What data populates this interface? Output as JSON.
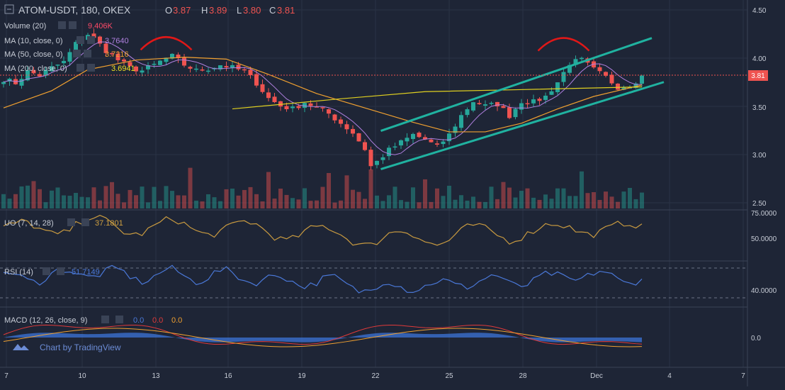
{
  "header": {
    "symbol": "ATOM-USDT, 180, OKEX",
    "ohlc": [
      {
        "k": "O",
        "v": "3.87"
      },
      {
        "k": "H",
        "v": "3.89"
      },
      {
        "k": "L",
        "v": "3.80"
      },
      {
        "k": "C",
        "v": "3.81"
      }
    ]
  },
  "overlays": [
    {
      "label": "Volume (20)",
      "value": "9.406K",
      "color": "#ff4a68"
    },
    {
      "label": "MA (10, close, 0)",
      "value": "3.7640",
      "color": "#b080e0"
    },
    {
      "label": "MA (50, close, 0)",
      "value": "3.7216",
      "color": "#f0a030"
    },
    {
      "label": "MA (200, close, 0)",
      "value": "3.6941",
      "color": "#f0e020"
    }
  ],
  "price_axis": [
    "4.50",
    "4.00",
    "3.50",
    "3.00",
    "2.50"
  ],
  "last_price": "3.81",
  "uo": {
    "label": "UO (7, 14, 28)",
    "value": "37.1801",
    "color": "#d0a040",
    "axis": [
      "75.0000",
      "50.0000"
    ]
  },
  "rsi": {
    "label": "RSI (14)",
    "value": "51.7149",
    "color": "#4a78d8",
    "axis": [
      "40.0000"
    ]
  },
  "macd": {
    "label": "MACD (12, 26, close, 9)",
    "values": [
      {
        "v": "0.0",
        "color": "#4a78d8"
      },
      {
        "v": "0.0",
        "color": "#e03a3a"
      },
      {
        "v": "0.0",
        "color": "#f0a030"
      }
    ],
    "axis": [
      "0.0"
    ]
  },
  "x_axis": [
    "7",
    "10",
    "13",
    "16",
    "19",
    "22",
    "25",
    "28",
    "Dec",
    "4",
    "7"
  ],
  "branding": "Chart by TradingView",
  "colors": {
    "up": "#26a69a",
    "down": "#ef5350",
    "channel": "#20b2a0",
    "arc": "#e01818",
    "background": "#1e2536"
  },
  "chart_data": {
    "type": "candlestick",
    "title": "ATOM-USDT, 180, OKEX",
    "ylim": [
      2.4,
      4.55
    ],
    "x_ticks": [
      "7",
      "10",
      "13",
      "16",
      "19",
      "22",
      "25",
      "28",
      "Dec",
      "4",
      "7"
    ],
    "close_path": [
      [
        0,
        3.78
      ],
      [
        2,
        3.74
      ],
      [
        4,
        3.86
      ],
      [
        6,
        3.82
      ],
      [
        8,
        3.9
      ],
      [
        10,
        3.96
      ],
      [
        12,
        4.15
      ],
      [
        14,
        4.25
      ],
      [
        15,
        4.2
      ],
      [
        17,
        4.08
      ],
      [
        19,
        3.98
      ],
      [
        21,
        3.9
      ],
      [
        23,
        3.87
      ],
      [
        25,
        3.93
      ],
      [
        27,
        4.0
      ],
      [
        28,
        4.02
      ],
      [
        30,
        3.93
      ],
      [
        32,
        3.87
      ],
      [
        34,
        3.89
      ],
      [
        36,
        3.93
      ],
      [
        38,
        3.9
      ],
      [
        40,
        3.86
      ],
      [
        42,
        3.74
      ],
      [
        44,
        3.58
      ],
      [
        46,
        3.5
      ],
      [
        48,
        3.47
      ],
      [
        50,
        3.54
      ],
      [
        52,
        3.48
      ],
      [
        54,
        3.42
      ],
      [
        56,
        3.32
      ],
      [
        58,
        3.22
      ],
      [
        60,
        3.05
      ],
      [
        61,
        2.87
      ],
      [
        62,
        2.92
      ],
      [
        64,
        3.04
      ],
      [
        66,
        3.12
      ],
      [
        68,
        3.2
      ],
      [
        70,
        3.15
      ],
      [
        72,
        3.07
      ],
      [
        74,
        3.2
      ],
      [
        76,
        3.4
      ],
      [
        78,
        3.55
      ],
      [
        80,
        3.5
      ],
      [
        82,
        3.52
      ],
      [
        84,
        3.4
      ],
      [
        86,
        3.55
      ],
      [
        88,
        3.54
      ],
      [
        90,
        3.6
      ],
      [
        92,
        3.75
      ],
      [
        94,
        3.95
      ],
      [
        96,
        3.98
      ],
      [
        98,
        3.88
      ],
      [
        100,
        3.8
      ],
      [
        102,
        3.7
      ],
      [
        104,
        3.72
      ],
      [
        106,
        3.81
      ]
    ],
    "ma200": [
      [
        38,
        3.47
      ],
      [
        55,
        3.57
      ],
      [
        70,
        3.65
      ],
      [
        85,
        3.67
      ],
      [
        106,
        3.7
      ]
    ],
    "ma50": [
      [
        0,
        3.48
      ],
      [
        8,
        3.66
      ],
      [
        14,
        3.88
      ],
      [
        22,
        3.98
      ],
      [
        30,
        4.01
      ],
      [
        37,
        3.99
      ],
      [
        44,
        3.83
      ],
      [
        52,
        3.63
      ],
      [
        60,
        3.48
      ],
      [
        68,
        3.33
      ],
      [
        74,
        3.23
      ],
      [
        80,
        3.23
      ],
      [
        86,
        3.32
      ],
      [
        92,
        3.47
      ],
      [
        98,
        3.6
      ],
      [
        106,
        3.72
      ]
    ],
    "channel_upper": [
      [
        63,
        3.24
      ],
      [
        108,
        4.21
      ]
    ],
    "channel_lower": [
      [
        63,
        2.84
      ],
      [
        110,
        3.75
      ]
    ],
    "tops": [
      [
        27,
        4.25
      ],
      [
        93,
        4.24
      ]
    ],
    "uo": {
      "ylim": [
        30,
        80
      ],
      "value": 37.1801
    },
    "rsi": {
      "ylim": [
        20,
        80
      ],
      "value": 51.7149,
      "bands": [
        70,
        30
      ]
    },
    "macd": {
      "ylim": [
        -0.2,
        0.2
      ],
      "value": 0.0
    }
  }
}
